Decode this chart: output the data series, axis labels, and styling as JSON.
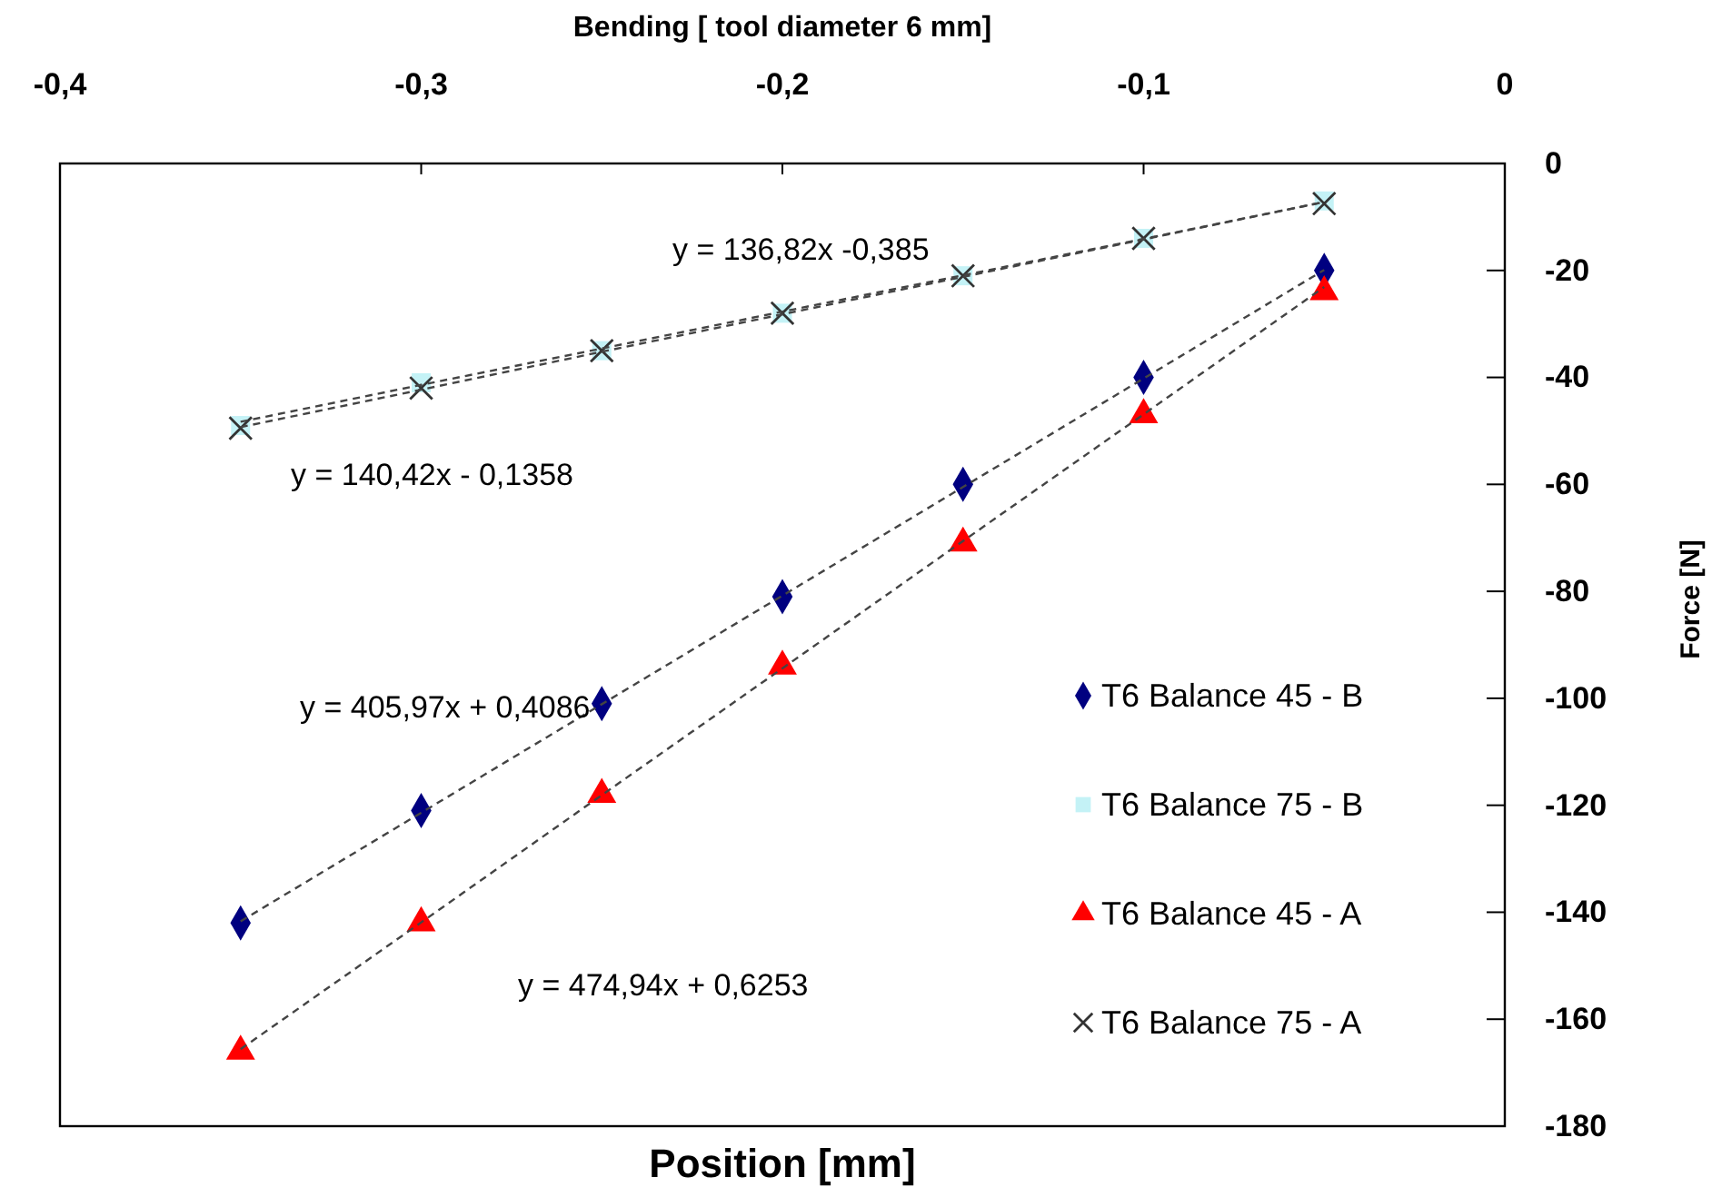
{
  "chart_data": {
    "type": "scatter",
    "x2label": "Bending [ tool diameter 6 mm]",
    "xlabel": "Position [mm]",
    "ylabel": "Force [N]",
    "xlim": [
      -0.4,
      0
    ],
    "xticks": [
      {
        "value": -0.4,
        "label": "-0,4"
      },
      {
        "value": -0.3,
        "label": "-0,3"
      },
      {
        "value": -0.2,
        "label": "-0,2"
      },
      {
        "value": -0.1,
        "label": "-0,1"
      },
      0
    ],
    "ylim": [
      -180,
      0
    ],
    "yticks": [
      0,
      -20,
      -40,
      -60,
      -80,
      -100,
      -120,
      -140,
      -160,
      -180
    ],
    "x": [
      -0.35,
      -0.3,
      -0.25,
      -0.2,
      -0.15,
      -0.1,
      -0.05
    ],
    "grid": false,
    "legend": "bottom right",
    "series": [
      {
        "name": "T6 Balance 45 - B",
        "color": "#000080",
        "marker": "diamond",
        "values": [
          -142,
          -121,
          -101,
          -81,
          -60,
          -40,
          -20
        ]
      },
      {
        "name": "T6 Balance 75 - B",
        "color": "#c4f2f6",
        "marker": "square",
        "values": [
          -49,
          -41,
          -35,
          -28,
          -21,
          -14,
          -7
        ]
      },
      {
        "name": "T6 Balance 45 - A",
        "color": "#ff0000",
        "marker": "triangle",
        "values": [
          -166,
          -142,
          -118,
          -94,
          -71,
          -47,
          -24
        ]
      },
      {
        "name": "T6 Balance 75 - A",
        "color": "#333333",
        "marker": "cross",
        "values": [
          -49.5,
          -42,
          -35,
          -28,
          -21,
          -14,
          -7.5
        ]
      },
      {
        "type": "line",
        "color": "#444444",
        "line_style": "dashed",
        "marker": "none",
        "values": [
          -141.7,
          -121.4,
          -101.1,
          -80.8,
          -60.5,
          -40.2,
          -19.9
        ]
      },
      {
        "type": "line",
        "color": "#444444",
        "line_style": "dashed",
        "marker": "none",
        "values": [
          -48.3,
          -41.4,
          -34.6,
          -27.7,
          -20.9,
          -14.1,
          -7.2
        ]
      },
      {
        "type": "line",
        "color": "#444444",
        "line_style": "dashed",
        "marker": "none",
        "values": [
          -165.6,
          -141.9,
          -118.1,
          -94.4,
          -70.6,
          -46.9,
          -23.1
        ]
      },
      {
        "type": "line",
        "color": "#444444",
        "line_style": "dashed",
        "marker": "none",
        "values": [
          -49.3,
          -42.3,
          -35.2,
          -28.2,
          -21.2,
          -14.2,
          -7.2
        ]
      }
    ],
    "annotations": [
      "y = 136,82x -0,385",
      "y = 140,42x - 0,1358",
      "y = 405,97x + 0,4086",
      "y = 474,94x + 0,6253"
    ]
  }
}
